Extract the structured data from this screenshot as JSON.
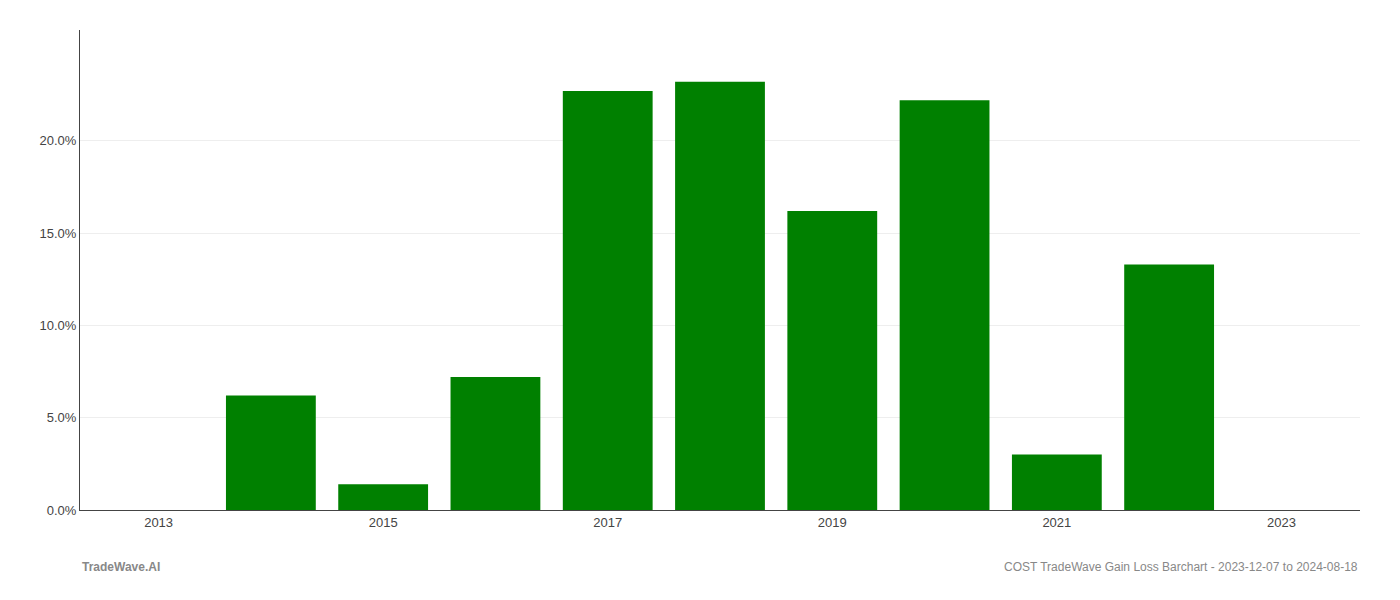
{
  "chart_data": {
    "type": "bar",
    "x": [
      2013,
      2014,
      2015,
      2016,
      2017,
      2018,
      2019,
      2020,
      2021,
      2022,
      2023
    ],
    "values": [
      0.0,
      0.062,
      0.014,
      0.072,
      0.227,
      0.232,
      0.162,
      0.222,
      0.03,
      0.133,
      0.0
    ],
    "color": "#008000",
    "xlim": [
      2012.3,
      2023.7
    ],
    "xticks": [
      2013,
      2015,
      2017,
      2019,
      2021,
      2023
    ],
    "ylim": [
      0.0,
      0.26
    ],
    "yticks": [
      {
        "value": 0.0,
        "label": "0.0%"
      },
      {
        "value": 0.05,
        "label": "5.0%"
      },
      {
        "value": 0.1,
        "label": "10.0%"
      },
      {
        "value": 0.15,
        "label": "15.0%"
      },
      {
        "value": 0.2,
        "label": "20.0%"
      }
    ],
    "grid": true,
    "annotations": [
      "TradeWave.AI",
      "COST TradeWave Gain Loss Barchart - 2023-12-07 to 2024-08-18"
    ]
  }
}
